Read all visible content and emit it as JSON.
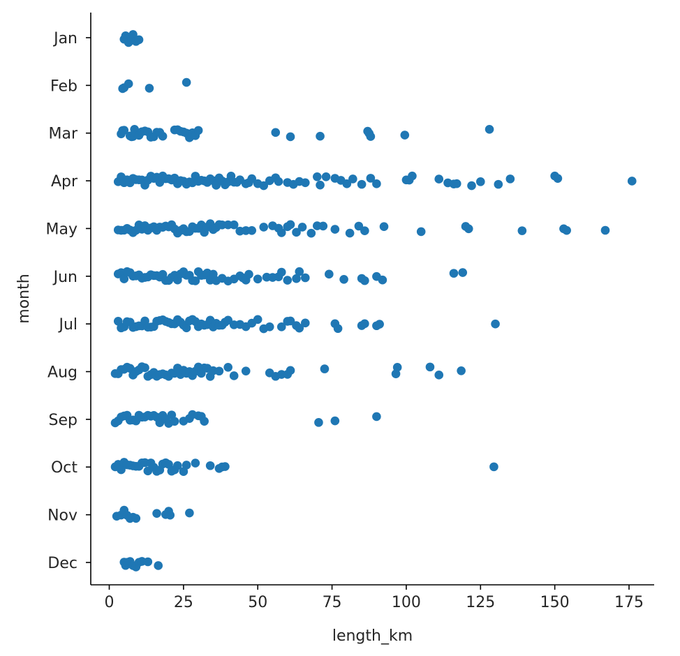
{
  "chart_data": {
    "type": "scatter",
    "subtype": "strip",
    "xlabel": "length_km",
    "ylabel": "month",
    "xlim": [
      -6,
      185
    ],
    "xticks": [
      0,
      25,
      50,
      75,
      100,
      125,
      150,
      175
    ],
    "categories": [
      "Jan",
      "Feb",
      "Mar",
      "Apr",
      "May",
      "Jun",
      "Jul",
      "Aug",
      "Sep",
      "Oct",
      "Nov",
      "Dec"
    ],
    "grid": false,
    "color": "#1f77b4",
    "series": [
      {
        "category": "Jan",
        "x": [
          5,
          5.5,
          6,
          6.5,
          7,
          7.5,
          8,
          9,
          10
        ]
      },
      {
        "category": "Feb",
        "x": [
          4.5,
          5,
          6.5,
          13.5,
          26
        ]
      },
      {
        "category": "Mar",
        "x": [
          4,
          4.5,
          5,
          7,
          7.5,
          8,
          8.5,
          9,
          10,
          11,
          12,
          13,
          14,
          15,
          16,
          17,
          18,
          22,
          23,
          24,
          25,
          26,
          27,
          28,
          29,
          30,
          56,
          61,
          71,
          87,
          87.5,
          88,
          99.5,
          128
        ]
      },
      {
        "category": "Apr",
        "x": [
          3,
          4,
          5,
          6,
          7,
          8,
          9,
          10,
          11,
          12,
          13,
          14,
          15,
          16,
          17,
          18,
          19,
          20,
          21,
          22,
          23,
          24,
          25,
          26,
          27,
          28,
          29,
          30,
          31,
          32,
          33,
          34,
          35,
          36,
          37,
          38,
          39,
          40,
          41,
          42,
          43,
          44,
          46,
          47,
          48,
          50,
          52,
          54,
          56,
          57,
          60,
          62,
          64,
          66,
          70,
          71,
          73,
          76,
          78,
          80,
          82,
          85,
          88,
          90,
          100,
          101,
          102,
          111,
          114,
          116,
          117,
          122,
          125,
          131,
          135,
          150,
          151,
          176
        ]
      },
      {
        "category": "May",
        "x": [
          3,
          4,
          5,
          6,
          7,
          8,
          9,
          10,
          11,
          12,
          13,
          14,
          15,
          16,
          17,
          18,
          19,
          20,
          21,
          22,
          23,
          24,
          25,
          26,
          27,
          28,
          29,
          30,
          31,
          32,
          33,
          34,
          35,
          36,
          37,
          38,
          40,
          42,
          44,
          46,
          48,
          52,
          55,
          57,
          58,
          60,
          61,
          63,
          65,
          68,
          70,
          72,
          76,
          81,
          84,
          86,
          92.5,
          105,
          120,
          121,
          139,
          153,
          154,
          167
        ]
      },
      {
        "category": "Jun",
        "x": [
          3,
          4,
          5,
          6,
          7,
          8,
          9,
          10,
          11,
          12,
          13,
          14,
          15,
          16,
          17,
          18,
          19,
          20,
          21,
          22,
          23,
          24,
          25,
          26,
          27,
          28,
          29,
          30,
          31,
          32,
          33,
          34,
          35,
          36,
          38,
          40,
          42,
          44,
          45,
          46,
          47,
          50,
          53,
          55,
          57,
          58,
          60,
          63,
          64,
          66,
          74,
          79,
          85,
          86,
          90,
          92,
          116,
          119
        ]
      },
      {
        "category": "Jul",
        "x": [
          3,
          4,
          5,
          6,
          7,
          8,
          9,
          10,
          11,
          12,
          13,
          14,
          15,
          16,
          17,
          18,
          19,
          20,
          21,
          22,
          23,
          24,
          25,
          26,
          27,
          28,
          29,
          30,
          31,
          32,
          33,
          34,
          35,
          36,
          37,
          38,
          39,
          40,
          42,
          44,
          46,
          48,
          50,
          52,
          54,
          58,
          60,
          61,
          63,
          64,
          66,
          76,
          77,
          85,
          86,
          90,
          91,
          130
        ]
      },
      {
        "category": "Aug",
        "x": [
          2,
          3,
          4,
          5,
          6,
          7,
          8,
          9,
          10,
          11,
          12,
          13,
          14,
          15,
          16,
          17,
          18,
          19,
          20,
          21,
          22,
          23,
          24,
          25,
          26,
          27,
          28,
          29,
          30,
          31,
          32,
          33,
          34,
          35,
          37,
          40,
          42,
          46,
          54,
          56,
          58,
          60,
          61,
          72.5,
          96.5,
          97,
          108,
          111,
          118.5
        ]
      },
      {
        "category": "Sep",
        "x": [
          2,
          3,
          4,
          5,
          6,
          7,
          8,
          9,
          10,
          11,
          12,
          13,
          14,
          15,
          16,
          17,
          18,
          19,
          20,
          21,
          22,
          25,
          27,
          28,
          30,
          31,
          32,
          70.5,
          76,
          90
        ]
      },
      {
        "category": "Oct",
        "x": [
          2,
          3,
          4,
          5,
          6,
          7,
          8,
          9,
          10,
          11,
          12,
          13,
          14,
          15,
          16,
          17,
          18,
          19,
          20,
          21,
          22,
          23,
          25,
          26,
          29,
          34,
          37,
          38,
          39,
          129.5
        ]
      },
      {
        "category": "Nov",
        "x": [
          2.5,
          4,
          5,
          6,
          7,
          8,
          9,
          16,
          19,
          20,
          20.5,
          27
        ]
      },
      {
        "category": "Dec",
        "x": [
          5,
          5.5,
          6,
          7,
          8,
          9,
          10,
          11,
          13,
          16.5
        ]
      }
    ]
  }
}
